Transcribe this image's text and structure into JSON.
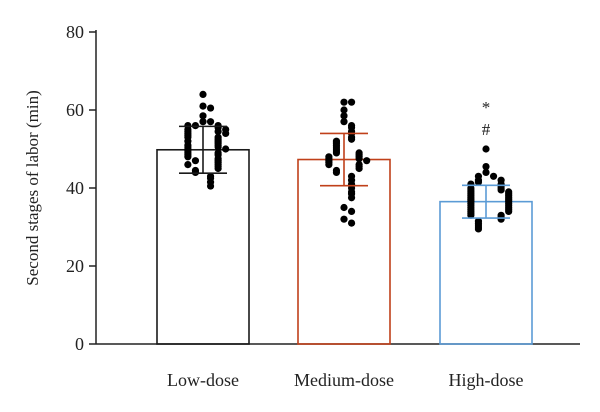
{
  "chart_data": {
    "type": "bar",
    "title": "",
    "xlabel": "",
    "ylabel": "Second stages of labor (min)",
    "ylim": [
      0,
      80
    ],
    "yticks": [
      0,
      20,
      40,
      60,
      80
    ],
    "grid": false,
    "categories": [
      "Low-dose",
      "Medium-dose",
      "High-dose"
    ],
    "series": [
      {
        "values": [
          49.8,
          47.3,
          36.5
        ],
        "sd": [
          6.0,
          6.7,
          4.2
        ],
        "bar_colors": [
          "#1a1a1a",
          "#c0401a",
          "#5b9bd5"
        ],
        "points": [
          [
            64,
            61,
            60.5,
            58.5,
            57,
            57,
            56,
            56,
            56,
            55.5,
            55,
            55,
            54.5,
            54.5,
            54,
            54,
            53.5,
            53,
            53,
            52.5,
            52,
            52,
            51.5,
            51,
            51,
            50.5,
            50.5,
            50,
            50,
            49.5,
            49,
            49,
            48.5,
            48.5,
            48,
            47.5,
            47,
            47,
            46.5,
            46,
            46,
            45.5,
            45,
            44.5,
            44,
            43,
            42.5,
            41.5,
            40.5
          ],
          [
            62,
            62,
            60,
            58.5,
            57,
            56,
            55.5,
            54.5,
            54,
            53,
            52.5,
            52,
            51.5,
            51,
            50.5,
            50,
            49.5,
            49,
            49,
            48.5,
            48,
            48,
            47.5,
            47.5,
            47,
            47,
            46.5,
            46,
            46,
            45.5,
            45,
            44.5,
            44,
            43,
            42,
            41,
            40,
            39,
            38.5,
            37.5,
            35,
            34,
            32,
            31
          ],
          [
            45.5,
            44,
            43,
            43,
            42,
            42,
            41.5,
            41,
            41,
            40.5,
            40,
            40,
            39.5,
            39.5,
            39,
            39,
            38.5,
            38.5,
            38,
            38,
            37.5,
            37.5,
            37,
            37,
            36.5,
            36.5,
            36,
            36,
            35.5,
            35.5,
            35,
            35,
            34.5,
            34.5,
            34,
            34,
            33.5,
            33,
            33,
            32.5,
            32,
            31.5,
            31,
            30.5,
            30,
            29.5
          ]
        ]
      }
    ],
    "annotations": [
      {
        "category": "High-dose",
        "lines": [
          "*",
          "#"
        ],
        "outlier": 50
      }
    ]
  }
}
